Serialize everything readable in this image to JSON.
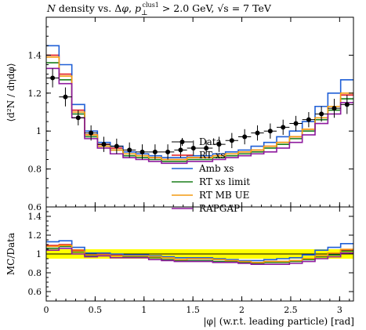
{
  "title": "N density vs. Δφ, p⊥ᶜˡᵘˢ¹ > 2.0 GeV, √s = 7 TeV",
  "title_parts": {
    "var": "N",
    "mid": " density vs. Δ",
    "phi": "φ",
    "comma": ", ",
    "p": "p",
    "sub": "⊥",
    "sup": "clus1",
    "cut": " > 2.0 GeV, ",
    "sqrt": "√s",
    "energy": " = 7 TeV"
  },
  "chart_data": [
    {
      "type": "line",
      "panel": "main",
      "title": "N density vs. Δφ, p⊥clus1 > 2.0 GeV, √s = 7 TeV",
      "ylabel": "⟨d²N / dηdφ⟩",
      "xlabel": "",
      "xlim": [
        0,
        3.1416
      ],
      "ylim": [
        0.6,
        1.6
      ],
      "yticks": [
        0.6,
        0.8,
        1.0,
        1.2,
        1.4
      ],
      "ytick_labels": [
        "0.6",
        "0.8",
        "1",
        "1.2",
        "1.4"
      ],
      "xticks": [
        0,
        0.5,
        1,
        1.5,
        2,
        2.5,
        3
      ],
      "bin_edges": [
        0,
        0.1309,
        0.2618,
        0.3927,
        0.5236,
        0.6545,
        0.7854,
        0.9163,
        1.0472,
        1.1781,
        1.309,
        1.4399,
        1.5708,
        1.7017,
        1.8326,
        1.9635,
        2.0944,
        2.2253,
        2.3562,
        2.4871,
        2.618,
        2.7489,
        2.8798,
        3.0107,
        3.1416
      ],
      "legend_position": "center",
      "data": {
        "name": "Data",
        "x": [
          0.065,
          0.196,
          0.327,
          0.458,
          0.589,
          0.72,
          0.851,
          0.982,
          1.113,
          1.243,
          1.374,
          1.505,
          1.636,
          1.767,
          1.898,
          2.029,
          2.16,
          2.291,
          2.422,
          2.553,
          2.684,
          2.814,
          2.945,
          3.076
        ],
        "y": [
          1.28,
          1.18,
          1.07,
          0.99,
          0.93,
          0.92,
          0.9,
          0.89,
          0.89,
          0.89,
          0.9,
          0.91,
          0.91,
          0.93,
          0.95,
          0.97,
          0.99,
          1.0,
          1.02,
          1.04,
          1.06,
          1.09,
          1.12,
          1.14
        ],
        "err": [
          0.05,
          0.05,
          0.04,
          0.04,
          0.04,
          0.04,
          0.04,
          0.04,
          0.04,
          0.04,
          0.04,
          0.04,
          0.04,
          0.04,
          0.04,
          0.04,
          0.04,
          0.04,
          0.04,
          0.04,
          0.04,
          0.04,
          0.05,
          0.05
        ],
        "color": "#000000"
      },
      "series": [
        {
          "name": "RT xs",
          "color": "#e41a1c",
          "values": [
            1.4,
            1.3,
            1.11,
            0.98,
            0.93,
            0.91,
            0.88,
            0.87,
            0.86,
            0.85,
            0.85,
            0.86,
            0.86,
            0.87,
            0.88,
            0.89,
            0.9,
            0.92,
            0.94,
            0.97,
            1.01,
            1.07,
            1.13,
            1.19
          ]
        },
        {
          "name": "Amb xs",
          "color": "#1f5fd6",
          "values": [
            1.45,
            1.35,
            1.14,
            1.0,
            0.94,
            0.92,
            0.89,
            0.88,
            0.87,
            0.86,
            0.86,
            0.87,
            0.87,
            0.88,
            0.89,
            0.9,
            0.92,
            0.94,
            0.97,
            1.0,
            1.05,
            1.13,
            1.2,
            1.27
          ]
        },
        {
          "name": "RT xs limit",
          "color": "#1a7f1a",
          "values": [
            1.36,
            1.27,
            1.09,
            0.97,
            0.92,
            0.9,
            0.87,
            0.86,
            0.85,
            0.84,
            0.84,
            0.85,
            0.85,
            0.86,
            0.87,
            0.88,
            0.89,
            0.91,
            0.93,
            0.96,
            1.0,
            1.06,
            1.11,
            1.17
          ]
        },
        {
          "name": "RT MB UE",
          "color": "#f39c12",
          "values": [
            1.39,
            1.29,
            1.1,
            0.98,
            0.92,
            0.9,
            0.88,
            0.87,
            0.86,
            0.85,
            0.85,
            0.86,
            0.86,
            0.87,
            0.88,
            0.89,
            0.9,
            0.92,
            0.94,
            0.97,
            1.01,
            1.07,
            1.13,
            1.2
          ]
        },
        {
          "name": "RAPGAP",
          "color": "#8e1a9e",
          "values": [
            1.33,
            1.25,
            1.07,
            0.96,
            0.91,
            0.88,
            0.86,
            0.85,
            0.84,
            0.83,
            0.83,
            0.84,
            0.84,
            0.85,
            0.86,
            0.87,
            0.88,
            0.89,
            0.91,
            0.94,
            0.98,
            1.04,
            1.09,
            1.15
          ]
        }
      ]
    },
    {
      "type": "line",
      "panel": "ratio",
      "ylabel": "MC/Data",
      "xlabel": "|φ| (w.r.t. leading particle) [rad]",
      "xlim": [
        0,
        3.1416
      ],
      "ylim": [
        0.5,
        1.5
      ],
      "yticks": [
        0.6,
        0.8,
        1.0,
        1.2,
        1.4
      ],
      "ytick_labels": [
        "0.6",
        "0.8",
        "1",
        "1.2",
        "1.4"
      ],
      "xticks": [
        0,
        0.5,
        1,
        1.5,
        2,
        2.5,
        3
      ],
      "xtick_labels": [
        "0",
        "0.5",
        "1",
        "1.5",
        "2",
        "2.5",
        "3"
      ],
      "band": {
        "lo": 0.95,
        "hi": 1.05,
        "color": "#ffff00"
      },
      "series": [
        {
          "name": "RT xs",
          "color": "#e41a1c",
          "values": [
            1.09,
            1.1,
            1.04,
            0.99,
            1.0,
            0.99,
            0.98,
            0.98,
            0.97,
            0.96,
            0.94,
            0.95,
            0.95,
            0.94,
            0.93,
            0.92,
            0.91,
            0.92,
            0.92,
            0.93,
            0.95,
            0.98,
            1.01,
            1.04
          ]
        },
        {
          "name": "Amb xs",
          "color": "#1f5fd6",
          "values": [
            1.13,
            1.14,
            1.07,
            1.01,
            1.01,
            1.0,
            0.99,
            0.99,
            0.98,
            0.97,
            0.96,
            0.96,
            0.96,
            0.95,
            0.94,
            0.93,
            0.93,
            0.94,
            0.95,
            0.96,
            0.99,
            1.04,
            1.07,
            1.11
          ]
        },
        {
          "name": "RT xs limit",
          "color": "#1a7f1a",
          "values": [
            1.06,
            1.08,
            1.02,
            0.98,
            0.99,
            0.98,
            0.97,
            0.97,
            0.96,
            0.94,
            0.93,
            0.93,
            0.93,
            0.92,
            0.92,
            0.91,
            0.9,
            0.91,
            0.91,
            0.92,
            0.94,
            0.97,
            0.99,
            1.03
          ]
        },
        {
          "name": "RT MB UE",
          "color": "#f39c12",
          "values": [
            1.08,
            1.09,
            1.03,
            0.99,
            0.99,
            0.98,
            0.98,
            0.98,
            0.97,
            0.96,
            0.94,
            0.95,
            0.95,
            0.94,
            0.93,
            0.92,
            0.91,
            0.92,
            0.92,
            0.93,
            0.95,
            0.98,
            1.01,
            1.05
          ]
        },
        {
          "name": "RAPGAP",
          "color": "#8e1a9e",
          "values": [
            1.04,
            1.06,
            1.0,
            0.97,
            0.98,
            0.96,
            0.96,
            0.96,
            0.94,
            0.93,
            0.92,
            0.92,
            0.92,
            0.91,
            0.91,
            0.9,
            0.89,
            0.89,
            0.89,
            0.9,
            0.92,
            0.95,
            0.97,
            1.01
          ]
        }
      ]
    }
  ]
}
